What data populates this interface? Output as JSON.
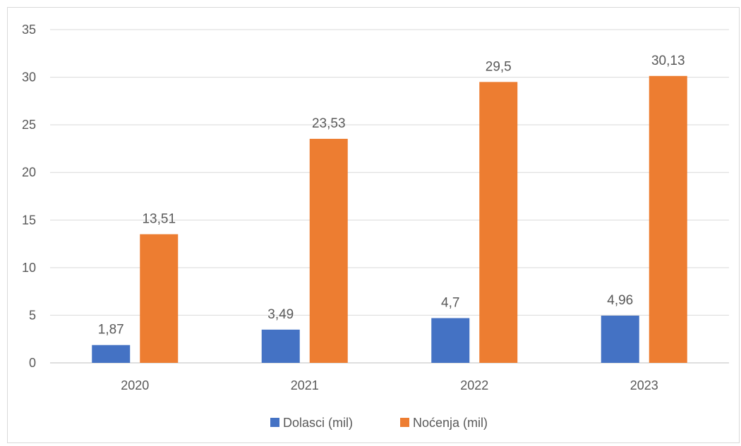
{
  "chart_data": {
    "type": "bar",
    "categories": [
      "2020",
      "2021",
      "2022",
      "2023"
    ],
    "series": [
      {
        "name": "Dolasci (mil)",
        "values": [
          1.87,
          3.49,
          4.7,
          4.96
        ],
        "labels": [
          "1,87",
          "3,49",
          "4,7",
          "4,96"
        ],
        "color": "#4472C4"
      },
      {
        "name": "Noćenja (mil)",
        "values": [
          13.51,
          23.53,
          29.5,
          30.13
        ],
        "labels": [
          "13,51",
          "23,53",
          "29,5",
          "30,13"
        ],
        "color": "#ED7D31"
      }
    ],
    "ylim": [
      0,
      35
    ],
    "yticks": [
      0,
      5,
      10,
      15,
      20,
      25,
      30,
      35
    ],
    "grid": true,
    "legend": "bottom",
    "gridColor": "#d9d9d9",
    "axisColor": "#bfbfbf"
  }
}
